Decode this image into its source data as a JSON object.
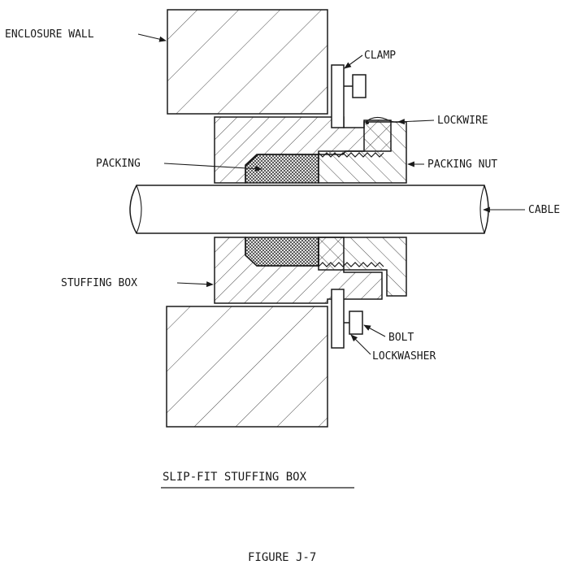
{
  "labels": {
    "enclosure_wall": "ENCLOSURE WALL",
    "clamp": "CLAMP",
    "lockwire": "LOCKWIRE",
    "packing": "PACKING",
    "packing_nut": "PACKING NUT",
    "cable": "CABLE",
    "stuffing_box": "STUFFING BOX",
    "bolt": "BOLT",
    "lockwasher": "LOCKWASHER"
  },
  "caption": "SLIP-FIT STUFFING BOX",
  "figure": "FIGURE J-7"
}
